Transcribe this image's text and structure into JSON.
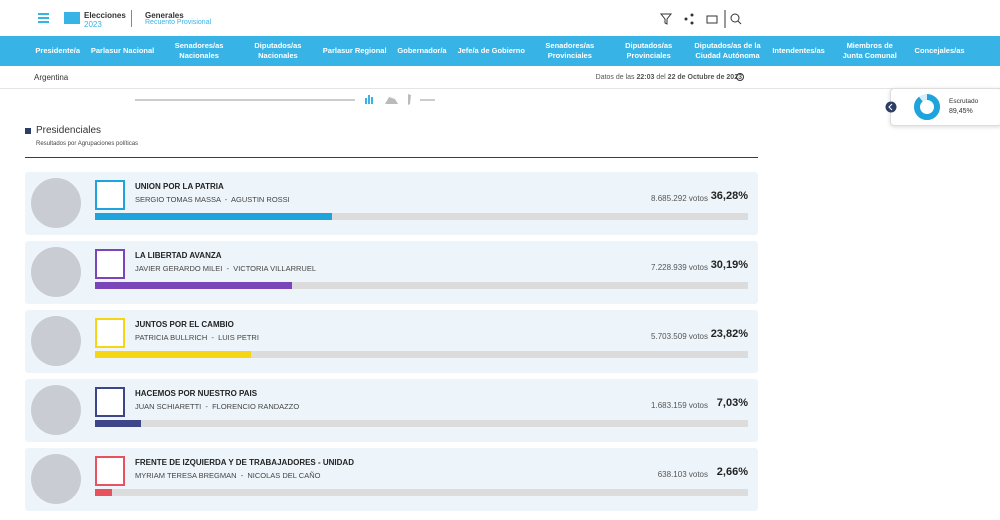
{
  "header": {
    "brand": "Elecciones",
    "year": "2023",
    "election": "Generales",
    "subtitle": "Recuento Provisional"
  },
  "nav": [
    "Presidente/a",
    "Parlasur Nacional",
    "Senadores/as Nacionales",
    "Diputados/as Nacionales",
    "Parlasur Regional",
    "Gobernador/a",
    "Jefe/a de Gobierno",
    "Senadores/as Provinciales",
    "Diputados/as Provinciales",
    "Diputados/as de la Ciudad Autónoma",
    "Intendentes/as",
    "Miembros de Junta Comunal",
    "Concejales/as"
  ],
  "breadcrumb": "Argentina",
  "update": {
    "prefix": "Datos de las",
    "time": "22:03",
    "middle": "del",
    "date": "22 de Octubre de 2023"
  },
  "section": {
    "title": "Presidenciales",
    "subtitle": "Resultados por Agrupaciones políticas"
  },
  "votes_unit": "votos",
  "results": [
    {
      "party": "UNION POR LA PATRIA",
      "candidates": "SERGIO TOMAS MASSA  -  AGUSTIN ROSSI",
      "votes": "8.685.292",
      "percent": 36.28,
      "percent_label": "36,28%",
      "color": "#1fa3dc"
    },
    {
      "party": "LA LIBERTAD AVANZA",
      "candidates": "JAVIER GERARDO MILEI  -  VICTORIA VILLARRUEL",
      "votes": "7.228.939",
      "percent": 30.19,
      "percent_label": "30,19%",
      "color": "#7a45b8"
    },
    {
      "party": "JUNTOS POR EL CAMBIO",
      "candidates": "PATRICIA BULLRICH  -  LUIS PETRI",
      "votes": "5.703.509",
      "percent": 23.82,
      "percent_label": "23,82%",
      "color": "#f5d514"
    },
    {
      "party": "HACEMOS POR NUESTRO PAIS",
      "candidates": "JUAN SCHIARETTI  -  FLORENCIO RANDAZZO",
      "votes": "1.683.159",
      "percent": 7.03,
      "percent_label": "7,03%",
      "color": "#3c4688"
    },
    {
      "party": "FRENTE DE IZQUIERDA Y DE TRABAJADORES - UNIDAD",
      "candidates": "MYRIAM TERESA BREGMAN  -  NICOLAS DEL CAÑO",
      "votes": "638.103",
      "percent": 2.66,
      "percent_label": "2,66%",
      "color": "#e8525e"
    }
  ],
  "scrutiny": {
    "label": "Escrutado",
    "percent": 89.45,
    "percent_label": "89,45%"
  }
}
